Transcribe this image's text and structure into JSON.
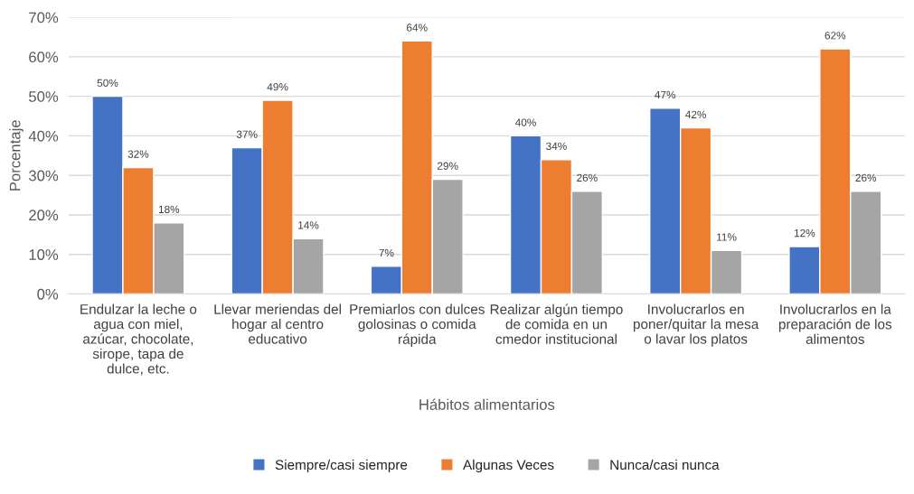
{
  "chart_data": {
    "type": "bar",
    "xlabel": "Hábitos alimentarios",
    "ylabel": "Porcentaje",
    "categories": [
      "Endulzar la leche o agua con miel, azúcar, chocolate, sirope, tapa de dulce, etc.",
      "Llevar meriendas del hogar al centro educativo",
      "Premiarlos con dulces golosinas o comida rápida",
      "Realizar algún tiempo de comida en un cmedor institucional",
      "Involucrarlos en poner/quitar la mesa o lavar los platos",
      "Involucrarlos en la preparación de los alimentos"
    ],
    "series": [
      {
        "name": "Siempre/casi siempre",
        "color": "#4472c4",
        "values": [
          50,
          37,
          7,
          40,
          47,
          12
        ],
        "value_labels": [
          "50%",
          "37%",
          "7%",
          "40%",
          "47%",
          "12%"
        ]
      },
      {
        "name": "Algunas Veces",
        "color": "#ed7d31",
        "values": [
          32,
          49,
          64,
          34,
          42,
          62
        ],
        "value_labels": [
          "32%",
          "49%",
          "64%",
          "34%",
          "42%",
          "62%"
        ]
      },
      {
        "name": "Nunca/casi nunca",
        "color": "#a5a5a5",
        "values": [
          18,
          14,
          29,
          26,
          11,
          26
        ],
        "value_labels": [
          "18%",
          "14%",
          "29%",
          "26%",
          "11%",
          "26%"
        ]
      }
    ],
    "ylim": [
      0,
      70
    ],
    "yticks": [
      {
        "value": 0,
        "label": "0%"
      },
      {
        "value": 10,
        "label": "10%"
      },
      {
        "value": 20,
        "label": "20%"
      },
      {
        "value": 30,
        "label": "30%"
      },
      {
        "value": 40,
        "label": "40%"
      },
      {
        "value": 50,
        "label": "50%"
      },
      {
        "value": 60,
        "label": "60%"
      },
      {
        "value": 70,
        "label": "70%"
      }
    ],
    "grid": "y",
    "legend": "bottom"
  }
}
